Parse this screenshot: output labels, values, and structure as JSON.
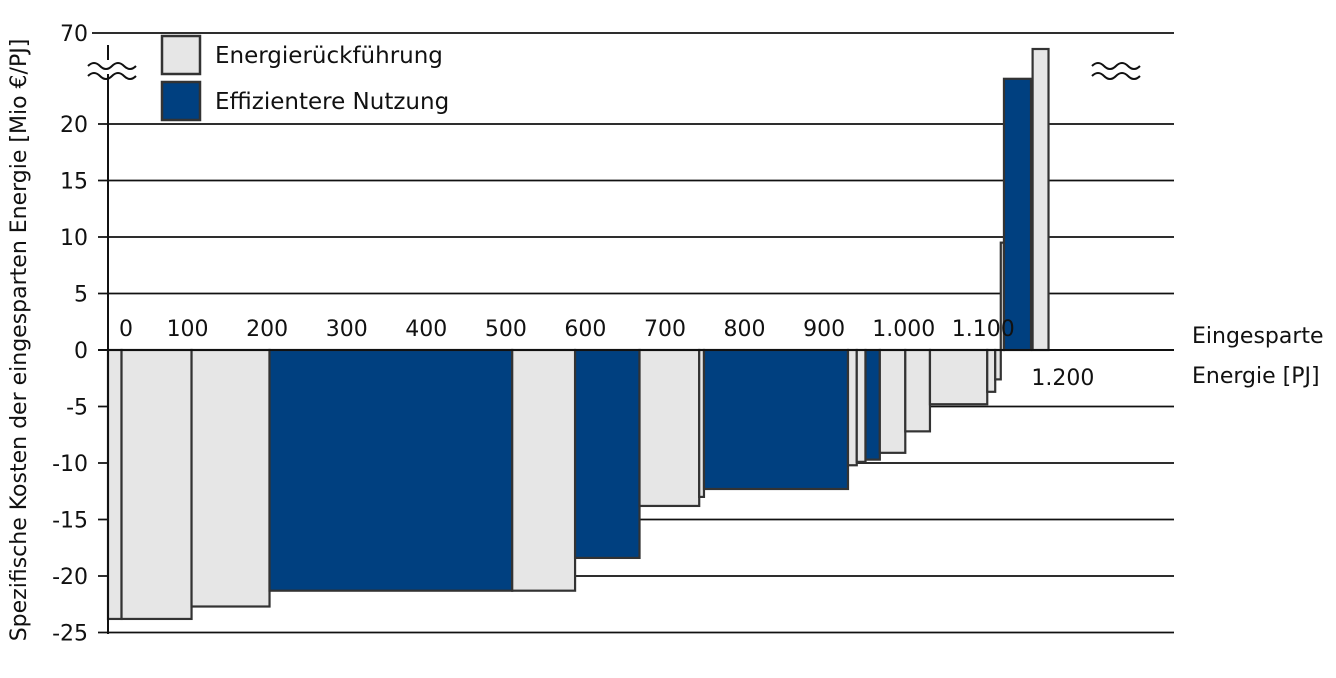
{
  "chart_data": {
    "type": "bar",
    "variant": "marginal-cost-curve",
    "title": "",
    "xlabel": "Eingesparte Energie [PJ]",
    "xlabel_lines": [
      "Eingesparte",
      "Energie [PJ]"
    ],
    "ylabel": "Spezifische Kosten der eingesparten Energie [Mio €/PJ]",
    "ylim": [
      -25,
      22
    ],
    "y_break": {
      "label": "70",
      "value": 70
    },
    "xlim": [
      0,
      1240
    ],
    "y_ticks": [
      "70",
      "20",
      "15",
      "10",
      "5",
      "0",
      "-5",
      "-10",
      "-15",
      "-20",
      "-25"
    ],
    "x_ticks": [
      {
        "label": "0",
        "value": 0
      },
      {
        "label": "100",
        "value": 100
      },
      {
        "label": "200",
        "value": 200
      },
      {
        "label": "300",
        "value": 300
      },
      {
        "label": "400",
        "value": 400
      },
      {
        "label": "500",
        "value": 500
      },
      {
        "label": "600",
        "value": 600
      },
      {
        "label": "700",
        "value": 700
      },
      {
        "label": "800",
        "value": 800
      },
      {
        "label": "900",
        "value": 900
      },
      {
        "label": "1.000",
        "value": 1000
      },
      {
        "label": "1.100",
        "value": 1100
      },
      {
        "label": "1.200",
        "value": 1200
      }
    ],
    "grid": true,
    "legend_position": "top-left",
    "series": [
      {
        "name": "Energierückführung",
        "color": "#e6e6e6",
        "key": "rueck"
      },
      {
        "name": "Effizientere Nutzung",
        "color": "#004080",
        "key": "eff"
      }
    ],
    "bars": [
      {
        "x0": 0,
        "x1": 17,
        "value": -23.8,
        "series": "rueck"
      },
      {
        "x0": 17,
        "x1": 105,
        "value": -23.8,
        "series": "rueck"
      },
      {
        "x0": 105,
        "x1": 203,
        "value": -22.7,
        "series": "rueck"
      },
      {
        "x0": 203,
        "x1": 508,
        "value": -21.3,
        "series": "eff"
      },
      {
        "x0": 508,
        "x1": 587,
        "value": -21.3,
        "series": "rueck"
      },
      {
        "x0": 587,
        "x1": 668,
        "value": -18.4,
        "series": "eff"
      },
      {
        "x0": 668,
        "x1": 743,
        "value": -13.8,
        "series": "rueck"
      },
      {
        "x0": 743,
        "x1": 749,
        "value": -13.0,
        "series": "rueck"
      },
      {
        "x0": 749,
        "x1": 930,
        "value": -12.3,
        "series": "eff"
      },
      {
        "x0": 930,
        "x1": 941,
        "value": -10.2,
        "series": "rueck"
      },
      {
        "x0": 941,
        "x1": 952,
        "value": -9.9,
        "series": "rueck"
      },
      {
        "x0": 952,
        "x1": 970,
        "value": -9.7,
        "series": "eff"
      },
      {
        "x0": 970,
        "x1": 1002,
        "value": -9.1,
        "series": "rueck"
      },
      {
        "x0": 1002,
        "x1": 1033,
        "value": -7.2,
        "series": "rueck"
      },
      {
        "x0": 1033,
        "x1": 1105,
        "value": -4.8,
        "series": "rueck"
      },
      {
        "x0": 1105,
        "x1": 1115,
        "value": -3.7,
        "series": "rueck"
      },
      {
        "x0": 1115,
        "x1": 1122,
        "value": -2.6,
        "series": "rueck"
      },
      {
        "x0": 1122,
        "x1": 1126,
        "value": 9.5,
        "series": "rueck"
      },
      {
        "x0": 1126,
        "x1": 1160,
        "value": 24,
        "series": "eff"
      },
      {
        "x0": 1162,
        "x1": 1182,
        "value": 70,
        "series": "rueck"
      }
    ]
  }
}
